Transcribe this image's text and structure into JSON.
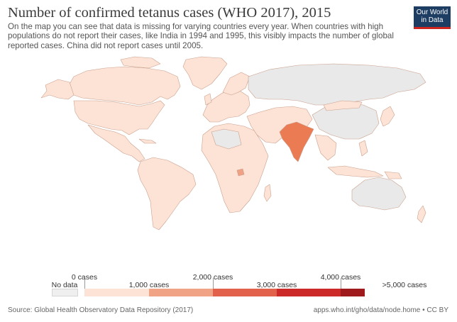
{
  "header": {
    "title": "Number of confirmed tetanus cases (WHO 2017), 2015",
    "subtitle": "On the map you can see that data is missing for varying countries every year. When countries with high populations do not report their cases, like India in 1994 and 1995, this visibly impacts the number of global reported cases. China did not report cases until 2005.",
    "logo_line1": "Our World",
    "logo_line2": "in Data"
  },
  "legend": {
    "no_data_label": "No data",
    "bins": [
      {
        "label_top": "0 cases",
        "label_bottom": "1,000 cases",
        "color": "#fde3d6"
      },
      {
        "label_top": "2,000 cases",
        "label_bottom": "",
        "color": "#f1a386"
      },
      {
        "label_top": "",
        "label_bottom": "3,000 cases",
        "color": "#e1614a"
      },
      {
        "label_top": "4,000 cases",
        "label_bottom": "",
        "color": "#cb2a28"
      },
      {
        "label_top": "",
        "label_bottom": ">5,000 cases",
        "color": "#9e1a1c"
      }
    ],
    "no_data_color": "#efefef"
  },
  "map": {
    "land_color": "#fde3d6",
    "no_data_color": "#e9e9e9",
    "highlight_india_color": "#ea7b53",
    "highlight_uganda_color": "#f0a183",
    "border_color": "#c9a08d"
  },
  "footer": {
    "source": "Source: Global Health Observatory Data Repository (2017)",
    "url": "apps.who.int/gho/data/node.home • CC BY"
  }
}
